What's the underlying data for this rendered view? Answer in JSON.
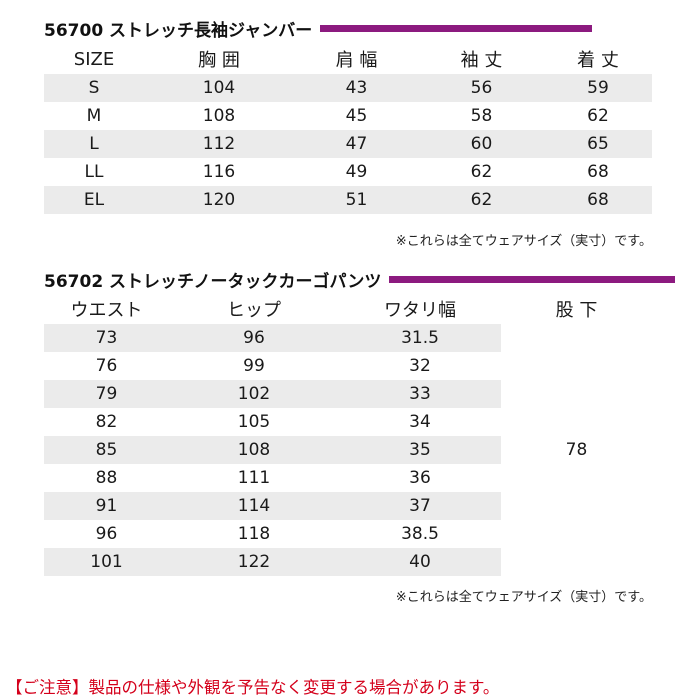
{
  "jacket": {
    "title": "56700 ストレッチ長袖ジャンバー",
    "headers": [
      "SIZE",
      "胸 囲",
      "肩 幅",
      "袖 丈",
      "着 丈"
    ],
    "rows": [
      [
        "S",
        "104",
        "43",
        "56",
        "59"
      ],
      [
        "M",
        "108",
        "45",
        "58",
        "62"
      ],
      [
        "L",
        "112",
        "47",
        "60",
        "65"
      ],
      [
        "LL",
        "116",
        "49",
        "62",
        "68"
      ],
      [
        "EL",
        "120",
        "51",
        "62",
        "68"
      ]
    ],
    "note": "※これらは全てウェアサイズ（実寸）です。"
  },
  "pants": {
    "title": "56702 ストレッチノータックカーゴパンツ",
    "headers": [
      "ウエスト",
      "ヒップ",
      "ワタリ幅",
      "股 下"
    ],
    "rows": [
      [
        "73",
        "96",
        "31.5"
      ],
      [
        "76",
        "99",
        "32"
      ],
      [
        "79",
        "102",
        "33"
      ],
      [
        "82",
        "105",
        "34"
      ],
      [
        "85",
        "108",
        "35"
      ],
      [
        "88",
        "111",
        "36"
      ],
      [
        "91",
        "114",
        "37"
      ],
      [
        "96",
        "118",
        "38.5"
      ],
      [
        "101",
        "122",
        "40"
      ]
    ],
    "inseam": "78",
    "note": "※これらは全てウェアサイズ（実寸）です。"
  },
  "caution": "【ご注意】製品の仕様や外観を予告なく変更する場合があります。",
  "colors": {
    "accent_bar": "#8c1a7f",
    "row_shade": "#ebebeb",
    "caution_text": "#d4001b"
  }
}
